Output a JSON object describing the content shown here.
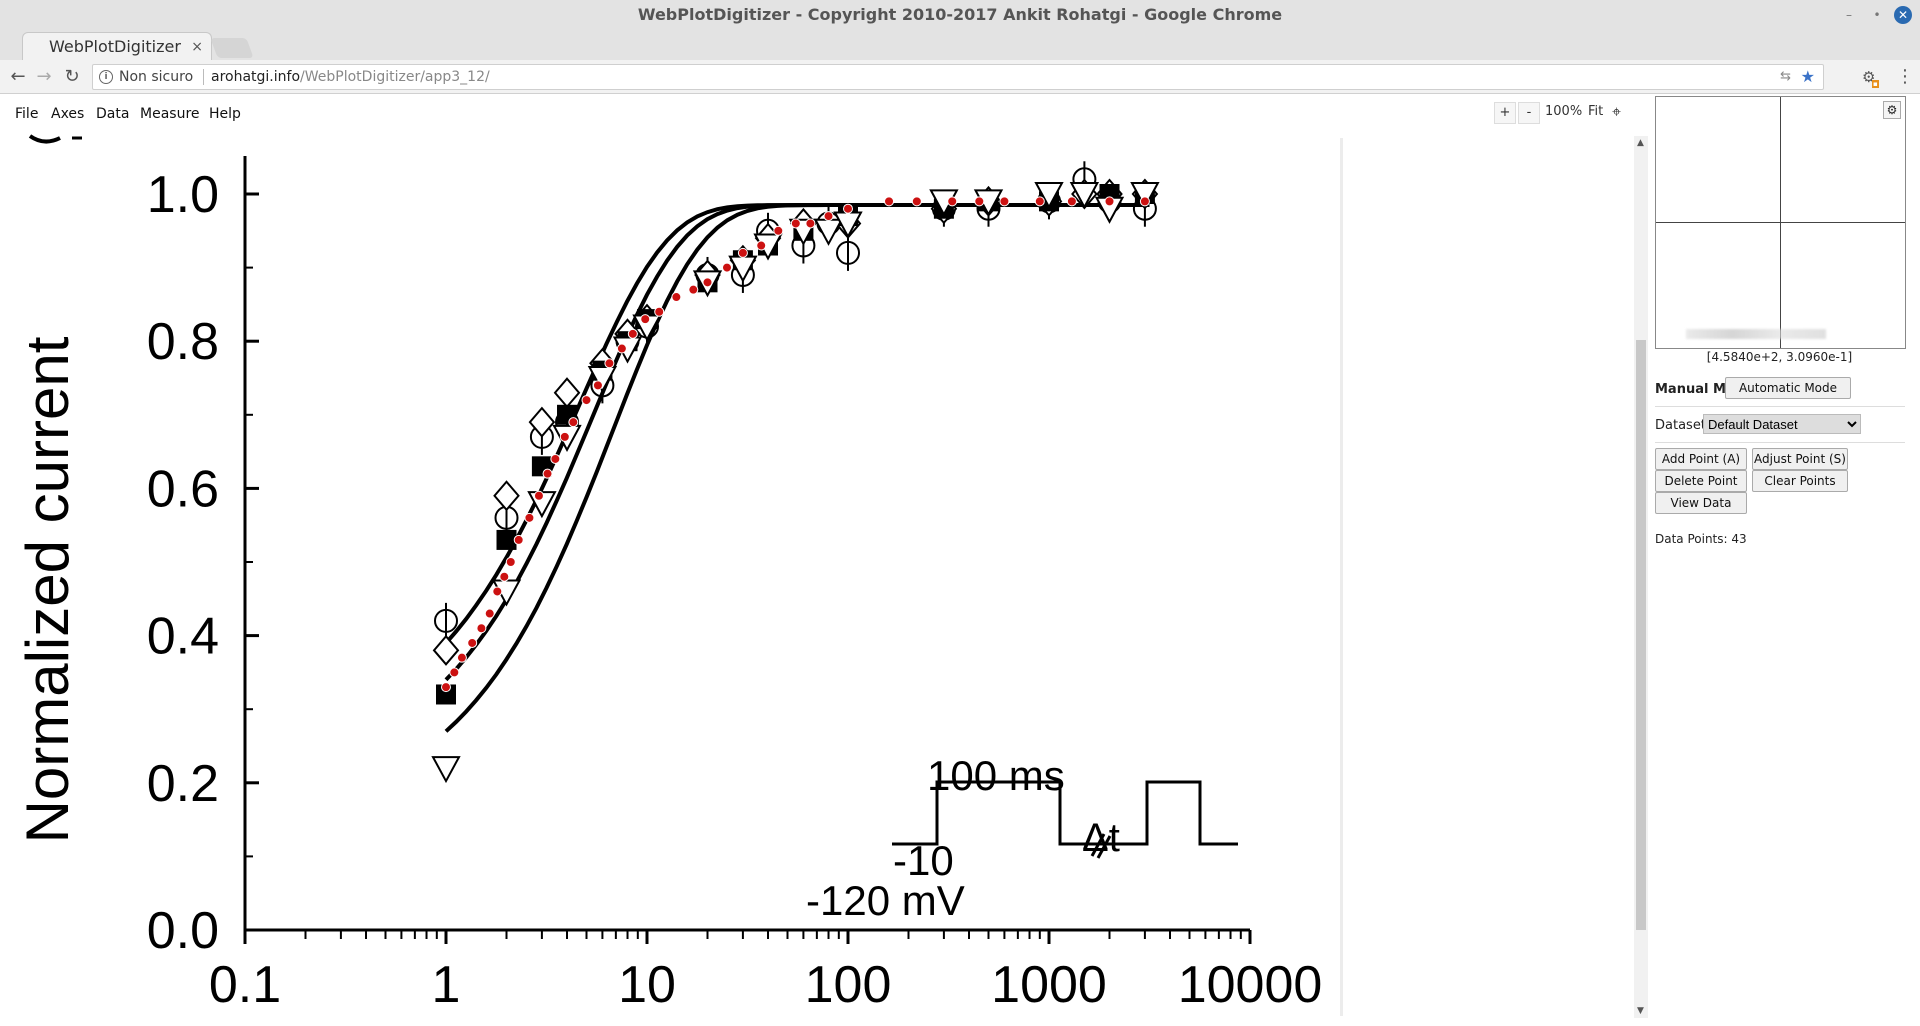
{
  "window": {
    "title": "WebPlotDigitizer - Copyright 2010-2017 Ankit Rohatgi - Google Chrome",
    "minimize": "–",
    "maximize": "•",
    "close": "✕"
  },
  "tab": {
    "label": "WebPlotDigitizer",
    "close": "×"
  },
  "address": {
    "insecure": "Non sicuro",
    "host": "arohatgi.info",
    "path": "/WebPlotDigitizer/app3_12/"
  },
  "menu": {
    "file": "File",
    "axes": "Axes",
    "data": "Data",
    "measure": "Measure",
    "help": "Help"
  },
  "zoom": {
    "plus": "+",
    "minus": "-",
    "level": "100%",
    "fit": "Fit"
  },
  "panel": {
    "coords": "[4.5840e+2, 3.0960e-1]",
    "manual_mode": "Manual Mode",
    "automatic_mode": "Automatic Mode",
    "dataset_label": "Dataset",
    "dataset_value": "Default Dataset",
    "add_point": "Add Point (A)",
    "adjust_point": "Adjust Point (S)",
    "delete_point": "Delete Point (D)",
    "clear_points": "Clear Points",
    "view_data": "View Data",
    "data_points": "Data Points: 43"
  },
  "chart_data": {
    "type": "scatter",
    "ylabel": "Normalized current",
    "xscale": "log",
    "xlim": [
      0.1,
      10000
    ],
    "ylim": [
      0.0,
      1.05
    ],
    "xticks": [
      "0.1",
      "1",
      "10",
      "100",
      "1000",
      "10000"
    ],
    "yticks": [
      "0.0",
      "0.2",
      "0.4",
      "0.6",
      "0.8",
      "1.0"
    ],
    "inset_labels": [
      "-10",
      "100 ms",
      "Δt",
      "-120 mV"
    ],
    "series": [
      {
        "marker": "circle",
        "x": [
          1,
          2,
          3,
          4,
          6,
          8,
          10,
          20,
          30,
          40,
          60,
          80,
          100,
          300,
          500,
          1000,
          1500,
          2000,
          3000
        ],
        "y": [
          0.42,
          0.56,
          0.67,
          0.69,
          0.74,
          0.8,
          0.82,
          0.89,
          0.89,
          0.95,
          0.93,
          0.96,
          0.92,
          0.98,
          0.98,
          0.99,
          1.02,
          0.99,
          0.98
        ]
      },
      {
        "marker": "diamond",
        "x": [
          1,
          2,
          3,
          4,
          6,
          8,
          10,
          20,
          30,
          40,
          60,
          100,
          300,
          500,
          1000,
          1500,
          2000,
          3000
        ],
        "y": [
          0.38,
          0.59,
          0.69,
          0.73,
          0.77,
          0.81,
          0.83,
          0.89,
          0.91,
          0.94,
          0.96,
          0.96,
          0.98,
          0.99,
          0.99,
          1.0,
          1.0,
          1.0
        ]
      },
      {
        "marker": "square",
        "x": [
          1,
          2,
          3,
          4,
          6,
          8,
          10,
          20,
          30,
          40,
          60,
          100,
          300,
          500,
          1000,
          2000,
          3000
        ],
        "y": [
          0.32,
          0.53,
          0.63,
          0.7,
          0.76,
          0.8,
          0.83,
          0.88,
          0.91,
          0.93,
          0.95,
          0.97,
          0.98,
          0.99,
          0.99,
          1.0,
          1.0
        ]
      },
      {
        "marker": "triangle",
        "x": [
          1,
          2,
          3,
          4,
          6,
          8,
          10,
          20,
          30,
          40,
          60,
          80,
          100,
          300,
          500,
          1000,
          1500,
          2000,
          3000
        ],
        "y": [
          0.22,
          0.46,
          0.58,
          0.67,
          0.75,
          0.79,
          0.82,
          0.88,
          0.9,
          0.93,
          0.95,
          0.95,
          0.96,
          0.99,
          0.99,
          1.0,
          1.0,
          0.98,
          1.0
        ]
      },
      {
        "marker": "digitized-red-dot",
        "x": [
          1,
          1.1,
          1.2,
          1.35,
          1.5,
          1.65,
          1.8,
          1.95,
          2.1,
          2.3,
          2.6,
          2.9,
          3.2,
          3.5,
          3.9,
          4.3,
          5,
          5.7,
          6.5,
          7.5,
          8.5,
          9.8,
          11.5,
          14,
          17,
          20,
          25,
          30,
          37,
          45,
          55,
          65,
          80,
          100,
          160,
          220,
          330,
          450,
          600,
          900,
          1300,
          2000,
          3000
        ],
        "y": [
          0.33,
          0.35,
          0.37,
          0.39,
          0.41,
          0.43,
          0.46,
          0.48,
          0.5,
          0.53,
          0.56,
          0.59,
          0.62,
          0.64,
          0.67,
          0.69,
          0.72,
          0.74,
          0.77,
          0.79,
          0.81,
          0.83,
          0.84,
          0.86,
          0.87,
          0.88,
          0.9,
          0.92,
          0.93,
          0.95,
          0.96,
          0.96,
          0.97,
          0.98,
          0.99,
          0.99,
          0.99,
          0.99,
          0.99,
          0.99,
          0.99,
          0.99,
          0.99
        ]
      }
    ]
  }
}
